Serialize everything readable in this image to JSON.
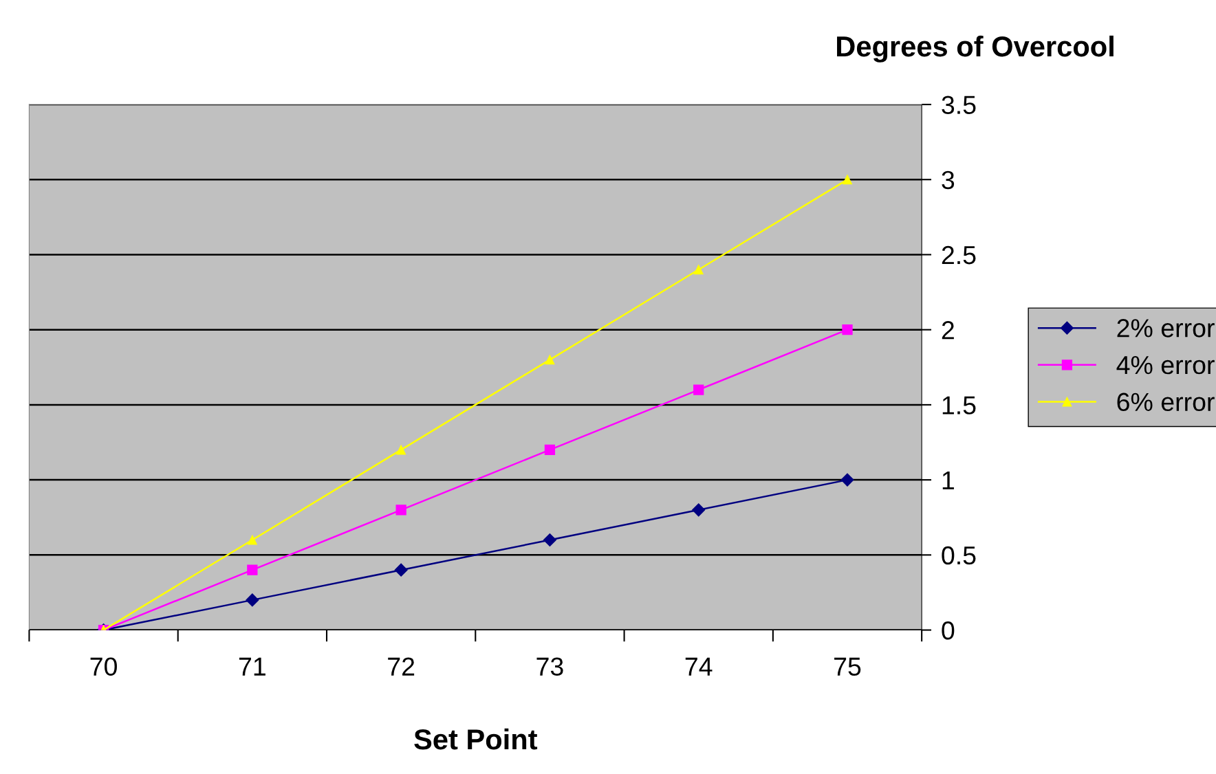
{
  "chart_data": {
    "type": "line",
    "xlabel": "Set Point",
    "ylabel": "Degrees of Overcool",
    "categories": [
      "70",
      "71",
      "72",
      "73",
      "74",
      "75"
    ],
    "series": [
      {
        "name": "2% error",
        "color": "#000080",
        "marker": "diamond",
        "values": [
          0,
          0.2,
          0.4,
          0.6,
          0.8,
          1
        ]
      },
      {
        "name": "4% error",
        "color": "#ff00ff",
        "marker": "square",
        "values": [
          0,
          0.4,
          0.8,
          1.2,
          1.6,
          2
        ]
      },
      {
        "name": "6% error",
        "color": "#ffff00",
        "marker": "triangle",
        "values": [
          0,
          0.6,
          1.2,
          1.8,
          2.4,
          3
        ]
      }
    ],
    "ylim": [
      0,
      3.5
    ],
    "yticks": [
      0,
      0.5,
      1,
      1.5,
      2,
      2.5,
      3,
      3.5
    ],
    "grid": "y",
    "legend": "right",
    "line_style": "solid"
  }
}
